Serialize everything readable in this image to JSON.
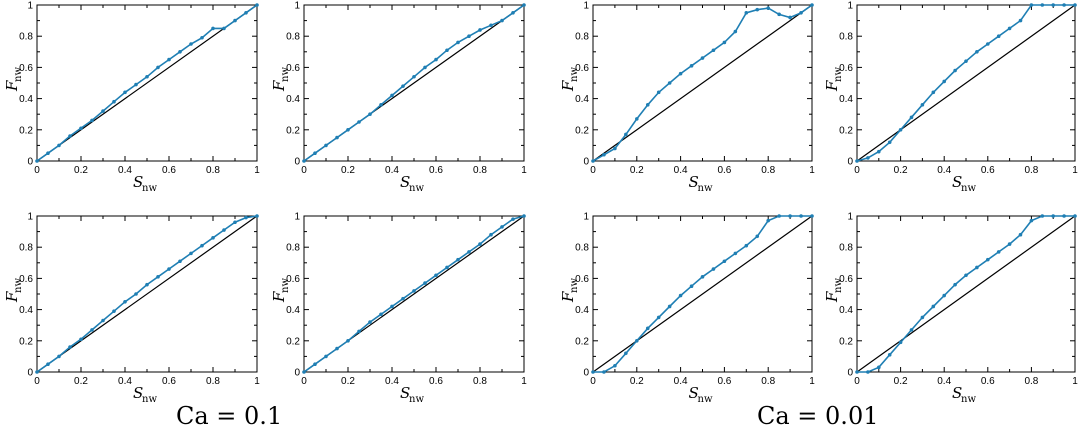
{
  "colors": {
    "series": "#1f7fb4",
    "reference": "#000000",
    "axis": "#000000"
  },
  "captions": {
    "left": "Ca = 0.1",
    "right": "Ca = 0.01"
  },
  "chart_data": [
    {
      "type": "line",
      "xlabel": "S",
      "xlabel_sub": "nw",
      "ylabel": "F",
      "ylabel_sub": "nw",
      "xlim": [
        0,
        1
      ],
      "ylim": [
        0,
        1
      ],
      "xticks": [
        "0",
        "0.2",
        "0.4",
        "0.6",
        "0.8",
        "1"
      ],
      "yticks": [
        "0",
        "0.2",
        "0.4",
        "0.6",
        "0.8",
        "1"
      ],
      "series": [
        {
          "x": [
            0,
            0.05,
            0.1,
            0.15,
            0.2,
            0.25,
            0.3,
            0.35,
            0.4,
            0.45,
            0.5,
            0.55,
            0.6,
            0.65,
            0.7,
            0.75,
            0.8,
            0.85,
            0.9,
            0.95,
            1.0
          ],
          "y": [
            0,
            0.05,
            0.1,
            0.16,
            0.21,
            0.26,
            0.32,
            0.38,
            0.44,
            0.49,
            0.54,
            0.6,
            0.65,
            0.7,
            0.75,
            0.79,
            0.85,
            0.85,
            0.9,
            0.95,
            1.0
          ]
        },
        {
          "x": [
            0,
            1
          ],
          "y": [
            0,
            1
          ]
        }
      ]
    },
    {
      "type": "line",
      "xlabel": "S",
      "xlabel_sub": "nw",
      "ylabel": "F",
      "ylabel_sub": "nw",
      "xlim": [
        0,
        1
      ],
      "ylim": [
        0,
        1
      ],
      "xticks": [
        "0",
        "0.2",
        "0.4",
        "0.6",
        "0.8",
        "1"
      ],
      "yticks": [
        "0",
        "0.2",
        "0.4",
        "0.6",
        "0.8",
        "1"
      ],
      "series": [
        {
          "x": [
            0,
            0.05,
            0.1,
            0.15,
            0.2,
            0.25,
            0.3,
            0.35,
            0.4,
            0.45,
            0.5,
            0.55,
            0.6,
            0.65,
            0.7,
            0.75,
            0.8,
            0.85,
            0.9,
            0.95,
            1.0
          ],
          "y": [
            0,
            0.05,
            0.1,
            0.15,
            0.2,
            0.25,
            0.3,
            0.36,
            0.42,
            0.48,
            0.54,
            0.6,
            0.65,
            0.71,
            0.76,
            0.8,
            0.84,
            0.87,
            0.9,
            0.95,
            1.0
          ]
        },
        {
          "x": [
            0,
            1
          ],
          "y": [
            0,
            1
          ]
        }
      ]
    },
    {
      "type": "line",
      "xlabel": "S",
      "xlabel_sub": "nw",
      "ylabel": "F",
      "ylabel_sub": "nw",
      "xlim": [
        0,
        1
      ],
      "ylim": [
        0,
        1
      ],
      "xticks": [
        "0",
        "0.2",
        "0.4",
        "0.6",
        "0.8",
        "1"
      ],
      "yticks": [
        "0",
        "0.2",
        "0.4",
        "0.6",
        "0.8",
        "1"
      ],
      "series": [
        {
          "x": [
            0,
            0.05,
            0.1,
            0.15,
            0.2,
            0.25,
            0.3,
            0.35,
            0.4,
            0.45,
            0.5,
            0.55,
            0.6,
            0.65,
            0.7,
            0.75,
            0.8,
            0.85,
            0.9,
            0.95,
            1.0
          ],
          "y": [
            0,
            0.04,
            0.08,
            0.17,
            0.27,
            0.36,
            0.44,
            0.5,
            0.56,
            0.61,
            0.66,
            0.71,
            0.76,
            0.83,
            0.95,
            0.97,
            0.98,
            0.94,
            0.92,
            0.95,
            1.0
          ]
        },
        {
          "x": [
            0,
            1
          ],
          "y": [
            0,
            1
          ]
        }
      ]
    },
    {
      "type": "line",
      "xlabel": "S",
      "xlabel_sub": "nw",
      "ylabel": "F",
      "ylabel_sub": "nw",
      "xlim": [
        0,
        1
      ],
      "ylim": [
        0,
        1
      ],
      "xticks": [
        "0",
        "0.2",
        "0.4",
        "0.6",
        "0.8",
        "1"
      ],
      "yticks": [
        "0",
        "0.2",
        "0.4",
        "0.6",
        "0.8",
        "1"
      ],
      "series": [
        {
          "x": [
            0,
            0.05,
            0.1,
            0.15,
            0.2,
            0.25,
            0.3,
            0.35,
            0.4,
            0.45,
            0.5,
            0.55,
            0.6,
            0.65,
            0.7,
            0.75,
            0.8,
            0.85,
            0.9,
            0.95,
            1.0
          ],
          "y": [
            0,
            0.02,
            0.06,
            0.12,
            0.2,
            0.28,
            0.36,
            0.44,
            0.51,
            0.58,
            0.64,
            0.7,
            0.75,
            0.8,
            0.85,
            0.9,
            1.0,
            1.0,
            1.0,
            1.0,
            1.0
          ]
        },
        {
          "x": [
            0,
            1
          ],
          "y": [
            0,
            1
          ]
        }
      ]
    },
    {
      "type": "line",
      "xlabel": "S",
      "xlabel_sub": "nw",
      "ylabel": "F",
      "ylabel_sub": "nw",
      "xlim": [
        0,
        1
      ],
      "ylim": [
        0,
        1
      ],
      "xticks": [
        "0",
        "0.2",
        "0.4",
        "0.6",
        "0.8",
        "1"
      ],
      "yticks": [
        "0",
        "0.2",
        "0.4",
        "0.6",
        "0.8",
        "1"
      ],
      "series": [
        {
          "x": [
            0,
            0.05,
            0.1,
            0.15,
            0.2,
            0.25,
            0.3,
            0.35,
            0.4,
            0.45,
            0.5,
            0.55,
            0.6,
            0.65,
            0.7,
            0.75,
            0.8,
            0.85,
            0.9,
            0.95,
            1.0
          ],
          "y": [
            0,
            0.05,
            0.1,
            0.16,
            0.21,
            0.27,
            0.33,
            0.39,
            0.45,
            0.5,
            0.56,
            0.61,
            0.66,
            0.71,
            0.76,
            0.81,
            0.86,
            0.91,
            0.96,
            0.99,
            1.0
          ]
        },
        {
          "x": [
            0,
            1
          ],
          "y": [
            0,
            1
          ]
        }
      ]
    },
    {
      "type": "line",
      "xlabel": "S",
      "xlabel_sub": "nw",
      "ylabel": "F",
      "ylabel_sub": "nw",
      "xlim": [
        0,
        1
      ],
      "ylim": [
        0,
        1
      ],
      "xticks": [
        "0",
        "0.2",
        "0.4",
        "0.6",
        "0.8",
        "1"
      ],
      "yticks": [
        "0",
        "0.2",
        "0.4",
        "0.6",
        "0.8",
        "1"
      ],
      "series": [
        {
          "x": [
            0,
            0.05,
            0.1,
            0.15,
            0.2,
            0.25,
            0.3,
            0.35,
            0.4,
            0.45,
            0.5,
            0.55,
            0.6,
            0.65,
            0.7,
            0.75,
            0.8,
            0.85,
            0.9,
            0.95,
            1.0
          ],
          "y": [
            0,
            0.05,
            0.1,
            0.15,
            0.2,
            0.26,
            0.32,
            0.37,
            0.42,
            0.47,
            0.52,
            0.57,
            0.62,
            0.67,
            0.72,
            0.77,
            0.82,
            0.88,
            0.93,
            0.98,
            1.0
          ]
        },
        {
          "x": [
            0,
            1
          ],
          "y": [
            0,
            1
          ]
        }
      ]
    },
    {
      "type": "line",
      "xlabel": "S",
      "xlabel_sub": "nw",
      "ylabel": "F",
      "ylabel_sub": "nw",
      "xlim": [
        0,
        1
      ],
      "ylim": [
        0,
        1
      ],
      "xticks": [
        "0",
        "0.2",
        "0.4",
        "0.6",
        "0.8",
        "1"
      ],
      "yticks": [
        "0",
        "0.2",
        "0.4",
        "0.6",
        "0.8",
        "1"
      ],
      "series": [
        {
          "x": [
            0,
            0.05,
            0.1,
            0.15,
            0.2,
            0.25,
            0.3,
            0.35,
            0.4,
            0.45,
            0.5,
            0.55,
            0.6,
            0.65,
            0.7,
            0.75,
            0.8,
            0.85,
            0.9,
            0.95,
            1.0
          ],
          "y": [
            0,
            0,
            0.04,
            0.12,
            0.2,
            0.28,
            0.35,
            0.42,
            0.49,
            0.55,
            0.61,
            0.66,
            0.71,
            0.76,
            0.81,
            0.87,
            0.97,
            1.0,
            1.0,
            1.0,
            1.0
          ]
        },
        {
          "x": [
            0,
            1
          ],
          "y": [
            0,
            1
          ]
        }
      ]
    },
    {
      "type": "line",
      "xlabel": "S",
      "xlabel_sub": "nw",
      "ylabel": "F",
      "ylabel_sub": "nw",
      "xlim": [
        0,
        1
      ],
      "ylim": [
        0,
        1
      ],
      "xticks": [
        "0",
        "0.2",
        "0.4",
        "0.6",
        "0.8",
        "1"
      ],
      "yticks": [
        "0",
        "0.2",
        "0.4",
        "0.6",
        "0.8",
        "1"
      ],
      "series": [
        {
          "x": [
            0,
            0.05,
            0.1,
            0.15,
            0.2,
            0.25,
            0.3,
            0.35,
            0.4,
            0.45,
            0.5,
            0.55,
            0.6,
            0.65,
            0.7,
            0.75,
            0.8,
            0.85,
            0.9,
            0.95,
            1.0
          ],
          "y": [
            0,
            0,
            0.03,
            0.11,
            0.19,
            0.27,
            0.35,
            0.42,
            0.49,
            0.56,
            0.62,
            0.67,
            0.72,
            0.77,
            0.82,
            0.88,
            0.97,
            1.0,
            1.0,
            1.0,
            1.0
          ]
        },
        {
          "x": [
            0,
            1
          ],
          "y": [
            0,
            1
          ]
        }
      ]
    }
  ]
}
